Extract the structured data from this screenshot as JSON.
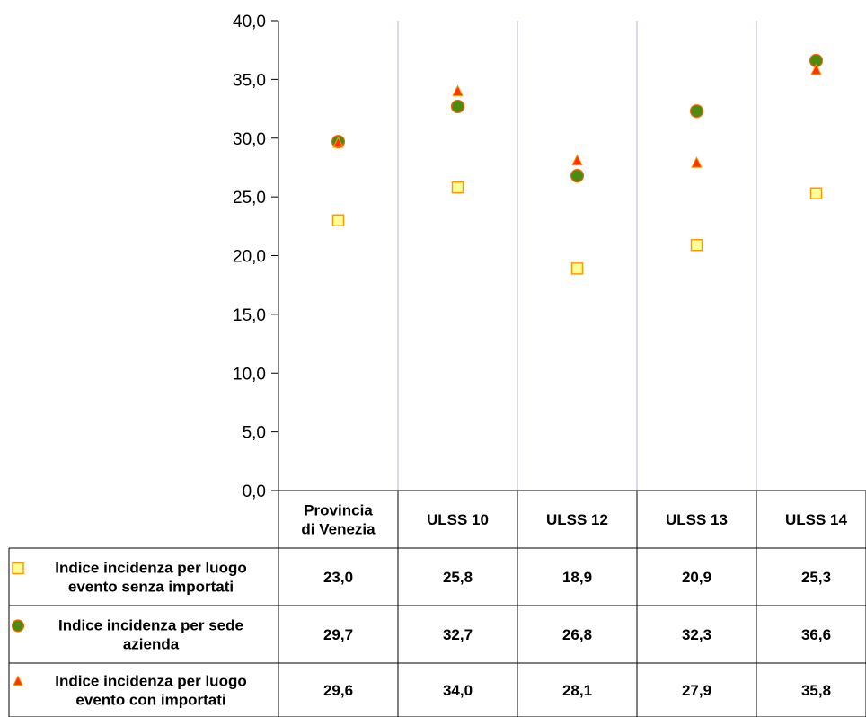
{
  "chart_data": {
    "type": "scatter",
    "categories": [
      [
        "Provincia",
        "di Venezia"
      ],
      [
        "ULSS 10"
      ],
      [
        "ULSS 12"
      ],
      [
        "ULSS 13"
      ],
      [
        "ULSS 14"
      ]
    ],
    "ylim": [
      0,
      40
    ],
    "yticks": [
      "0,0",
      "5,0",
      "10,0",
      "15,0",
      "20,0",
      "25,0",
      "30,0",
      "35,0",
      "40,0"
    ],
    "ytick_values": [
      0,
      5,
      10,
      15,
      20,
      25,
      30,
      35,
      40
    ],
    "grid": "vertical category separators",
    "legend_placement": "data table rows below chart",
    "series": [
      {
        "name_lines": [
          "Indice incidenza per luogo",
          "evento senza importati"
        ],
        "marker": "square",
        "fill": "#ffff99",
        "stroke": "#ff9900",
        "values": [
          23.0,
          25.8,
          18.9,
          20.9,
          25.3
        ],
        "labels": [
          "23,0",
          "25,8",
          "18,9",
          "20,9",
          "25,3"
        ]
      },
      {
        "name_lines": [
          "Indice incidenza per sede",
          "azienda"
        ],
        "marker": "circle",
        "fill": "#4f8a10",
        "stroke": "#ff6600",
        "values": [
          29.7,
          32.7,
          26.8,
          32.3,
          36.6
        ],
        "labels": [
          "29,7",
          "32,7",
          "26,8",
          "32,3",
          "36,6"
        ]
      },
      {
        "name_lines": [
          "Indice incidenza per luogo",
          "evento con importati"
        ],
        "marker": "triangle",
        "fill": "#ff3300",
        "stroke": "#ff9900",
        "values": [
          29.6,
          34.0,
          28.1,
          27.9,
          35.8
        ],
        "labels": [
          "29,6",
          "34,0",
          "28,1",
          "27,9",
          "35,8"
        ]
      }
    ]
  }
}
